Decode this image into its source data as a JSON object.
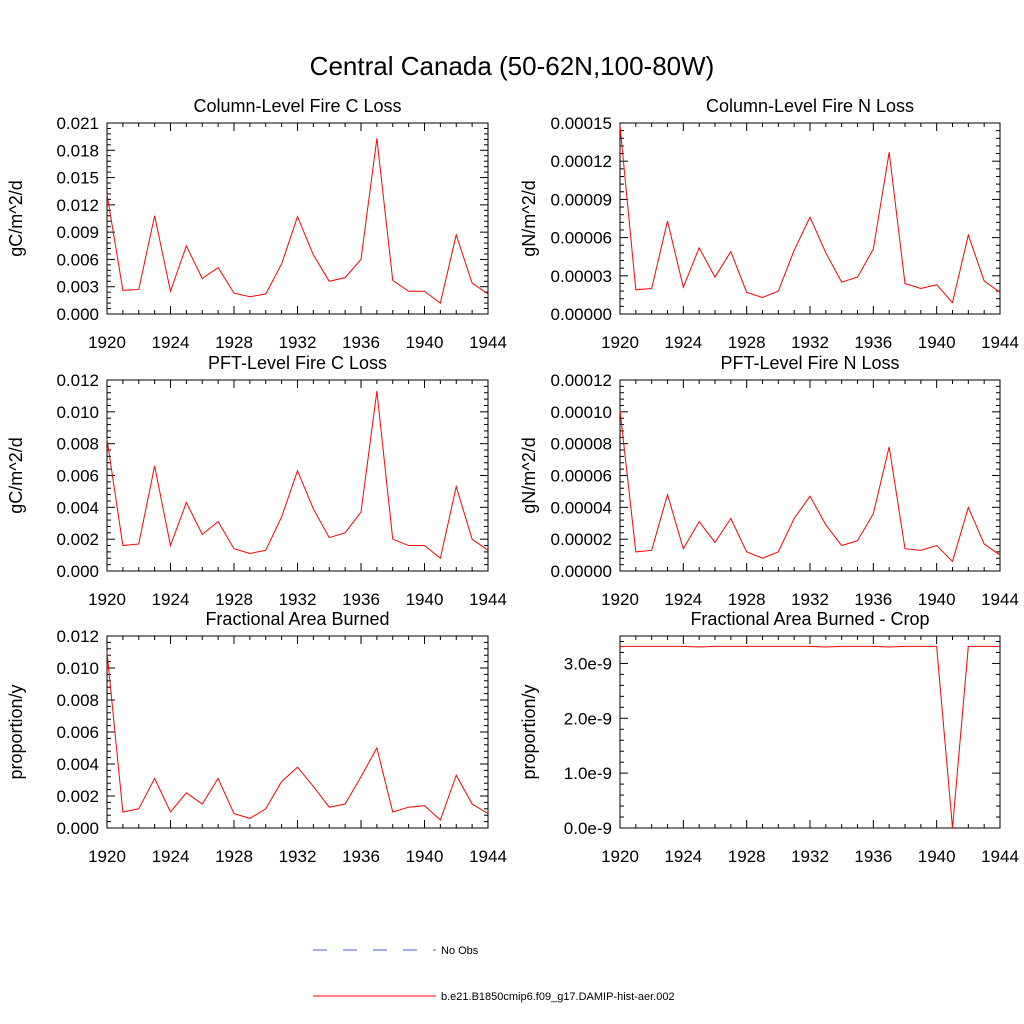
{
  "title": "Central Canada (50-62N,100-80W)",
  "legend": [
    {
      "label": "No Obs",
      "color": "#4a5bd6",
      "style": "dashed"
    },
    {
      "label": "b.e21.B1850cmip6.f09_g17.DAMIP-hist-aer.002",
      "color": "#ff0000",
      "style": "solid"
    }
  ],
  "chart_data": [
    {
      "type": "line",
      "title": "Column-Level Fire C Loss",
      "ylabel": "gC/m^2/d",
      "xlim": [
        1920,
        1944
      ],
      "ylim": [
        0,
        0.021
      ],
      "xticks": [
        1920,
        1924,
        1928,
        1932,
        1936,
        1940,
        1944
      ],
      "yticks": [
        0,
        0.003,
        0.006,
        0.009,
        0.012,
        0.015,
        0.018,
        0.021
      ],
      "ytick_labels": [
        "0.000",
        "0.003",
        "0.006",
        "0.009",
        "0.012",
        "0.015",
        "0.018",
        "0.021"
      ],
      "x": [
        1920,
        1921,
        1922,
        1923,
        1924,
        1925,
        1926,
        1927,
        1928,
        1929,
        1930,
        1931,
        1932,
        1933,
        1934,
        1935,
        1936,
        1937,
        1938,
        1939,
        1940,
        1941,
        1942,
        1943,
        1944
      ],
      "series": [
        {
          "name": "b.e21.B1850cmip6.f09_g17.DAMIP-hist-aer.002",
          "color": "#ff0000",
          "values": [
            0.0132,
            0.0026,
            0.0027,
            0.0108,
            0.0025,
            0.0075,
            0.0039,
            0.0051,
            0.0023,
            0.0019,
            0.0022,
            0.0055,
            0.0107,
            0.0065,
            0.0036,
            0.004,
            0.006,
            0.0193,
            0.0037,
            0.0025,
            0.0025,
            0.0012,
            0.0087,
            0.0034,
            0.0022
          ]
        }
      ]
    },
    {
      "type": "line",
      "title": "Column-Level Fire N Loss",
      "ylabel": "gN/m^2/d",
      "xlim": [
        1920,
        1944
      ],
      "ylim": [
        0,
        0.00015
      ],
      "xticks": [
        1920,
        1924,
        1928,
        1932,
        1936,
        1940,
        1944
      ],
      "yticks": [
        0,
        3e-05,
        6e-05,
        9e-05,
        0.00012,
        0.00015
      ],
      "ytick_labels": [
        "0.00000",
        "0.00003",
        "0.00006",
        "0.00009",
        "0.00012",
        "0.00015"
      ],
      "x": [
        1920,
        1921,
        1922,
        1923,
        1924,
        1925,
        1926,
        1927,
        1928,
        1929,
        1930,
        1931,
        1932,
        1933,
        1934,
        1935,
        1936,
        1937,
        1938,
        1939,
        1940,
        1941,
        1942,
        1943,
        1944
      ],
      "series": [
        {
          "name": "b.e21.B1850cmip6.f09_g17.DAMIP-hist-aer.002",
          "color": "#ff0000",
          "values": [
            0.000148,
            1.9e-05,
            2e-05,
            7.3e-05,
            2.1e-05,
            5.2e-05,
            2.9e-05,
            4.9e-05,
            1.7e-05,
            1.3e-05,
            1.8e-05,
            5e-05,
            7.6e-05,
            4.8e-05,
            2.5e-05,
            2.9e-05,
            5.1e-05,
            0.000127,
            2.4e-05,
            2e-05,
            2.3e-05,
            9e-06,
            6.2e-05,
            2.6e-05,
            1.7e-05
          ]
        }
      ]
    },
    {
      "type": "line",
      "title": "PFT-Level Fire C Loss",
      "ylabel": "gC/m^2/d",
      "xlim": [
        1920,
        1944
      ],
      "ylim": [
        0,
        0.012
      ],
      "xticks": [
        1920,
        1924,
        1928,
        1932,
        1936,
        1940,
        1944
      ],
      "yticks": [
        0,
        0.002,
        0.004,
        0.006,
        0.008,
        0.01,
        0.012
      ],
      "ytick_labels": [
        "0.000",
        "0.002",
        "0.004",
        "0.006",
        "0.008",
        "0.010",
        "0.012"
      ],
      "x": [
        1920,
        1921,
        1922,
        1923,
        1924,
        1925,
        1926,
        1927,
        1928,
        1929,
        1930,
        1931,
        1932,
        1933,
        1934,
        1935,
        1936,
        1937,
        1938,
        1939,
        1940,
        1941,
        1942,
        1943,
        1944
      ],
      "series": [
        {
          "name": "b.e21.B1850cmip6.f09_g17.DAMIP-hist-aer.002",
          "color": "#ff0000",
          "values": [
            0.0083,
            0.0016,
            0.0017,
            0.0066,
            0.0016,
            0.0043,
            0.0023,
            0.0031,
            0.0014,
            0.0011,
            0.0013,
            0.0034,
            0.0063,
            0.0039,
            0.0021,
            0.0024,
            0.0037,
            0.0113,
            0.002,
            0.0016,
            0.0016,
            0.0008,
            0.0053,
            0.002,
            0.0013
          ]
        }
      ]
    },
    {
      "type": "line",
      "title": "PFT-Level Fire N Loss",
      "ylabel": "gN/m^2/d",
      "xlim": [
        1920,
        1944
      ],
      "ylim": [
        0,
        0.00012
      ],
      "xticks": [
        1920,
        1924,
        1928,
        1932,
        1936,
        1940,
        1944
      ],
      "yticks": [
        0,
        2e-05,
        4e-05,
        6e-05,
        8e-05,
        0.0001,
        0.00012
      ],
      "ytick_labels": [
        "0.00000",
        "0.00002",
        "0.00004",
        "0.00006",
        "0.00008",
        "0.00010",
        "0.00012"
      ],
      "x": [
        1920,
        1921,
        1922,
        1923,
        1924,
        1925,
        1926,
        1927,
        1928,
        1929,
        1930,
        1931,
        1932,
        1933,
        1934,
        1935,
        1936,
        1937,
        1938,
        1939,
        1940,
        1941,
        1942,
        1943,
        1944
      ],
      "series": [
        {
          "name": "b.e21.B1850cmip6.f09_g17.DAMIP-hist-aer.002",
          "color": "#ff0000",
          "values": [
            0.000101,
            1.2e-05,
            1.3e-05,
            4.8e-05,
            1.4e-05,
            3.1e-05,
            1.8e-05,
            3.3e-05,
            1.2e-05,
            8e-06,
            1.2e-05,
            3.3e-05,
            4.7e-05,
            2.9e-05,
            1.6e-05,
            1.9e-05,
            3.6e-05,
            7.8e-05,
            1.4e-05,
            1.3e-05,
            1.6e-05,
            6e-06,
            4e-05,
            1.7e-05,
            1e-05
          ]
        }
      ]
    },
    {
      "type": "line",
      "title": "Fractional Area Burned",
      "ylabel": "proportion/y",
      "xlim": [
        1920,
        1944
      ],
      "ylim": [
        0,
        0.012
      ],
      "xticks": [
        1920,
        1924,
        1928,
        1932,
        1936,
        1940,
        1944
      ],
      "yticks": [
        0,
        0.002,
        0.004,
        0.006,
        0.008,
        0.01,
        0.012
      ],
      "ytick_labels": [
        "0.000",
        "0.002",
        "0.004",
        "0.006",
        "0.008",
        "0.010",
        "0.012"
      ],
      "x": [
        1920,
        1921,
        1922,
        1923,
        1924,
        1925,
        1926,
        1927,
        1928,
        1929,
        1930,
        1931,
        1932,
        1933,
        1934,
        1935,
        1936,
        1937,
        1938,
        1939,
        1940,
        1941,
        1942,
        1943,
        1944
      ],
      "series": [
        {
          "name": "b.e21.B1850cmip6.f09_g17.DAMIP-hist-aer.002",
          "color": "#ff0000",
          "values": [
            0.011,
            0.001,
            0.0012,
            0.0031,
            0.001,
            0.0022,
            0.0015,
            0.0031,
            0.0009,
            0.0006,
            0.0012,
            0.0029,
            0.0038,
            0.0026,
            0.0013,
            0.0015,
            0.0032,
            0.005,
            0.001,
            0.0013,
            0.0014,
            0.0005,
            0.0033,
            0.0015,
            0.0009
          ]
        }
      ]
    },
    {
      "type": "line",
      "title": "Fractional Area Burned - Crop",
      "ylabel": "proportion/y",
      "xlim": [
        1920,
        1944
      ],
      "ylim": [
        0,
        3.5e-09
      ],
      "xticks": [
        1920,
        1924,
        1928,
        1932,
        1936,
        1940,
        1944
      ],
      "yticks": [
        0,
        1e-09,
        2e-09,
        3e-09
      ],
      "ytick_labels": [
        "0.0e-9",
        "1.0e-9",
        "2.0e-9",
        "3.0e-9"
      ],
      "x": [
        1920,
        1921,
        1922,
        1923,
        1924,
        1925,
        1926,
        1927,
        1928,
        1929,
        1930,
        1931,
        1932,
        1933,
        1934,
        1935,
        1936,
        1937,
        1938,
        1939,
        1940,
        1941,
        1942,
        1943,
        1944
      ],
      "series": [
        {
          "name": "b.e21.B1850cmip6.f09_g17.DAMIP-hist-aer.002",
          "color": "#ff0000",
          "values": [
            3.31e-09,
            3.31e-09,
            3.31e-09,
            3.31e-09,
            3.31e-09,
            3.3e-09,
            3.31e-09,
            3.31e-09,
            3.31e-09,
            3.31e-09,
            3.31e-09,
            3.31e-09,
            3.31e-09,
            3.3e-09,
            3.31e-09,
            3.31e-09,
            3.31e-09,
            3.3e-09,
            3.31e-09,
            3.31e-09,
            3.31e-09,
            0,
            3.31e-09,
            3.31e-09,
            3.31e-09
          ]
        }
      ]
    }
  ]
}
